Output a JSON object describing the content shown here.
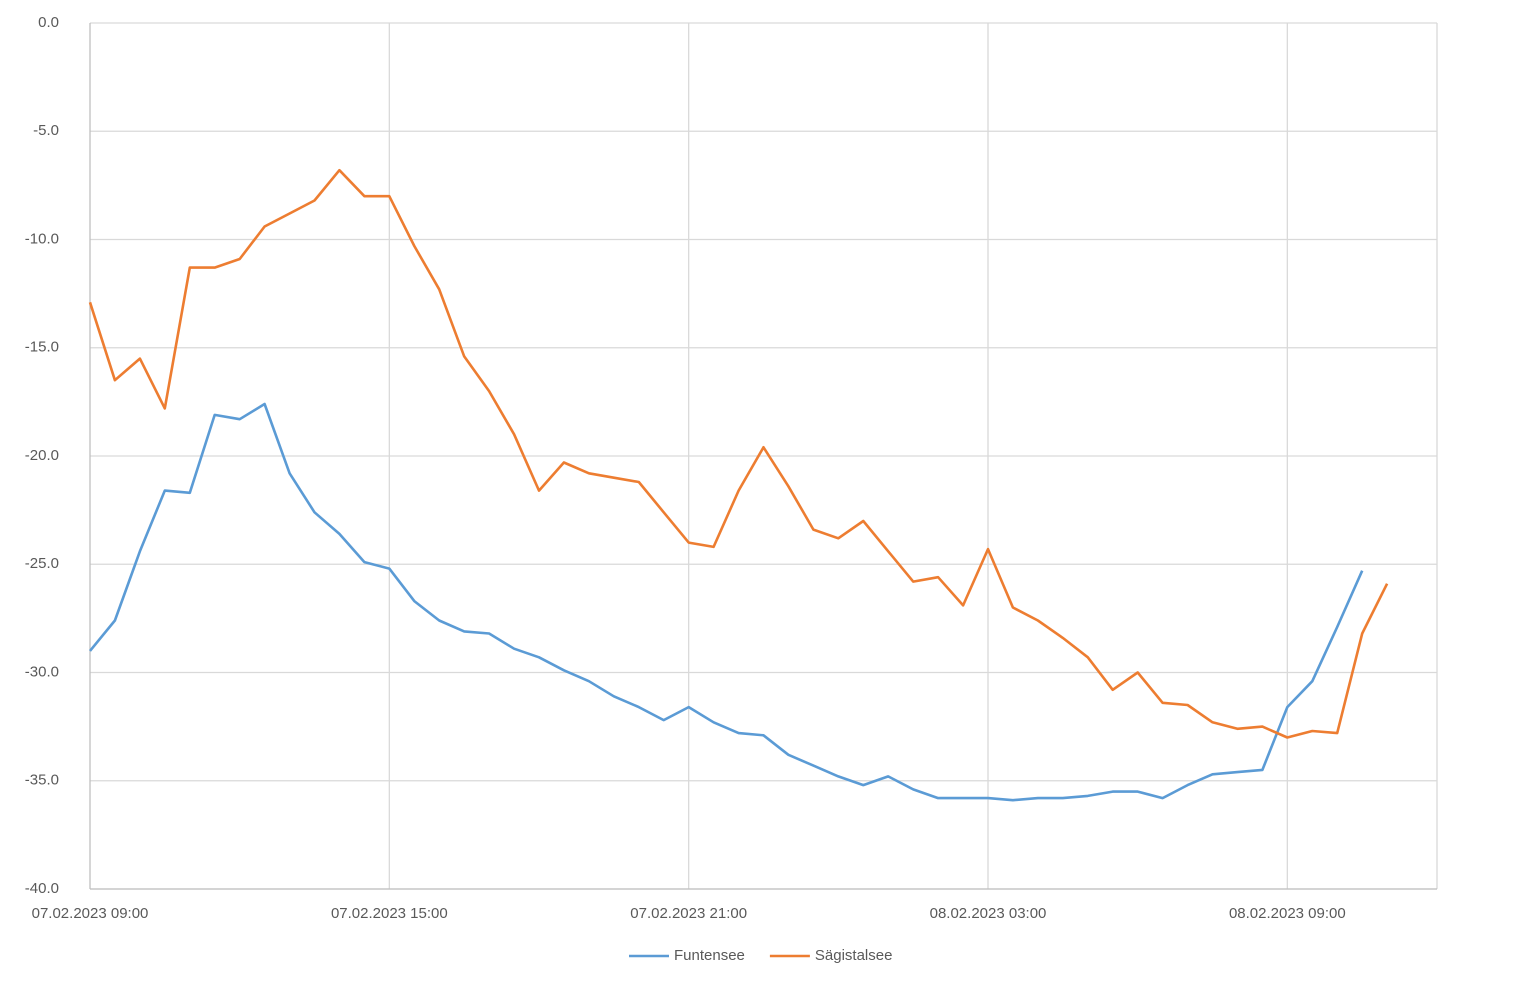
{
  "chart_data": {
    "type": "line",
    "x": [
      "07.02.2023 09:00",
      "07.02.2023 09:30",
      "07.02.2023 10:00",
      "07.02.2023 10:30",
      "07.02.2023 11:00",
      "07.02.2023 11:30",
      "07.02.2023 12:00",
      "07.02.2023 12:30",
      "07.02.2023 13:00",
      "07.02.2023 13:30",
      "07.02.2023 14:00",
      "07.02.2023 14:30",
      "07.02.2023 15:00",
      "07.02.2023 15:30",
      "07.02.2023 16:00",
      "07.02.2023 16:30",
      "07.02.2023 17:00",
      "07.02.2023 17:30",
      "07.02.2023 18:00",
      "07.02.2023 18:30",
      "07.02.2023 19:00",
      "07.02.2023 19:30",
      "07.02.2023 20:00",
      "07.02.2023 20:30",
      "07.02.2023 21:00",
      "07.02.2023 21:30",
      "07.02.2023 22:00",
      "07.02.2023 22:30",
      "07.02.2023 23:00",
      "07.02.2023 23:30",
      "08.02.2023 00:00",
      "08.02.2023 00:30",
      "08.02.2023 01:00",
      "08.02.2023 01:30",
      "08.02.2023 02:00",
      "08.02.2023 02:30",
      "08.02.2023 03:00",
      "08.02.2023 03:30",
      "08.02.2023 04:00",
      "08.02.2023 04:30",
      "08.02.2023 05:00",
      "08.02.2023 05:30",
      "08.02.2023 06:00",
      "08.02.2023 06:30",
      "08.02.2023 07:00",
      "08.02.2023 07:30",
      "08.02.2023 08:00",
      "08.02.2023 08:30",
      "08.02.2023 09:00",
      "08.02.2023 09:30",
      "08.02.2023 10:00",
      "08.02.2023 10:30",
      "08.02.2023 11:00"
    ],
    "series": [
      {
        "name": "Funtensee",
        "color": "#5b9bd5",
        "values": [
          -29.0,
          -27.6,
          -24.4,
          -21.6,
          -21.7,
          -18.1,
          -18.3,
          -17.6,
          -20.8,
          -22.6,
          -23.6,
          -24.9,
          -25.2,
          -26.7,
          -27.6,
          -28.1,
          -28.2,
          -28.9,
          -29.3,
          -29.9,
          -30.4,
          -31.1,
          -31.6,
          -32.2,
          -31.6,
          -32.3,
          -32.8,
          -32.9,
          -33.8,
          -34.3,
          -34.8,
          -35.2,
          -34.8,
          -35.4,
          -35.8,
          -35.8,
          -35.8,
          -35.9,
          -35.8,
          -35.8,
          -35.7,
          -35.5,
          -35.5,
          -35.8,
          -35.2,
          -34.7,
          -34.6,
          -34.5,
          -31.6,
          -30.4,
          -27.9,
          -25.3,
          null
        ]
      },
      {
        "name": "Sägistalsee",
        "color": "#ed7d31",
        "values": [
          -12.9,
          -16.5,
          -15.5,
          -17.8,
          -11.3,
          -11.3,
          -10.9,
          -9.4,
          -8.8,
          -8.2,
          -6.8,
          -8.0,
          -8.0,
          -10.3,
          -12.3,
          -15.4,
          -17.0,
          -19.0,
          -21.6,
          -20.3,
          -20.8,
          -21.0,
          -21.2,
          -22.6,
          -24.0,
          -24.2,
          -21.6,
          -19.6,
          -21.4,
          -23.4,
          -23.8,
          -23.0,
          -24.4,
          -25.8,
          -25.6,
          -26.9,
          -24.3,
          -27.0,
          -27.6,
          -28.4,
          -29.3,
          -30.8,
          -30.0,
          -31.4,
          -31.5,
          -32.3,
          -32.6,
          -32.5,
          -33.0,
          -32.7,
          -32.8,
          -28.2,
          -25.9
        ]
      }
    ],
    "xlim": [
      "07.02.2023 09:00",
      "08.02.2023 12:00"
    ],
    "xticks": [
      "07.02.2023 09:00",
      "07.02.2023 15:00",
      "07.02.2023 21:00",
      "08.02.2023 03:00",
      "08.02.2023 09:00"
    ],
    "ylim": [
      -40,
      0
    ],
    "yticks": [
      {
        "value": 0,
        "label": "0.0"
      },
      {
        "value": -5,
        "label": "-5.0"
      },
      {
        "value": -10,
        "label": "-10.0"
      },
      {
        "value": -15,
        "label": "-15.0"
      },
      {
        "value": -20,
        "label": "-20.0"
      },
      {
        "value": -25,
        "label": "-25.0"
      },
      {
        "value": -30,
        "label": "-30.0"
      },
      {
        "value": -35,
        "label": "-35.0"
      },
      {
        "value": -40,
        "label": "-40.0"
      }
    ],
    "grid": true,
    "legend": "bottom"
  }
}
